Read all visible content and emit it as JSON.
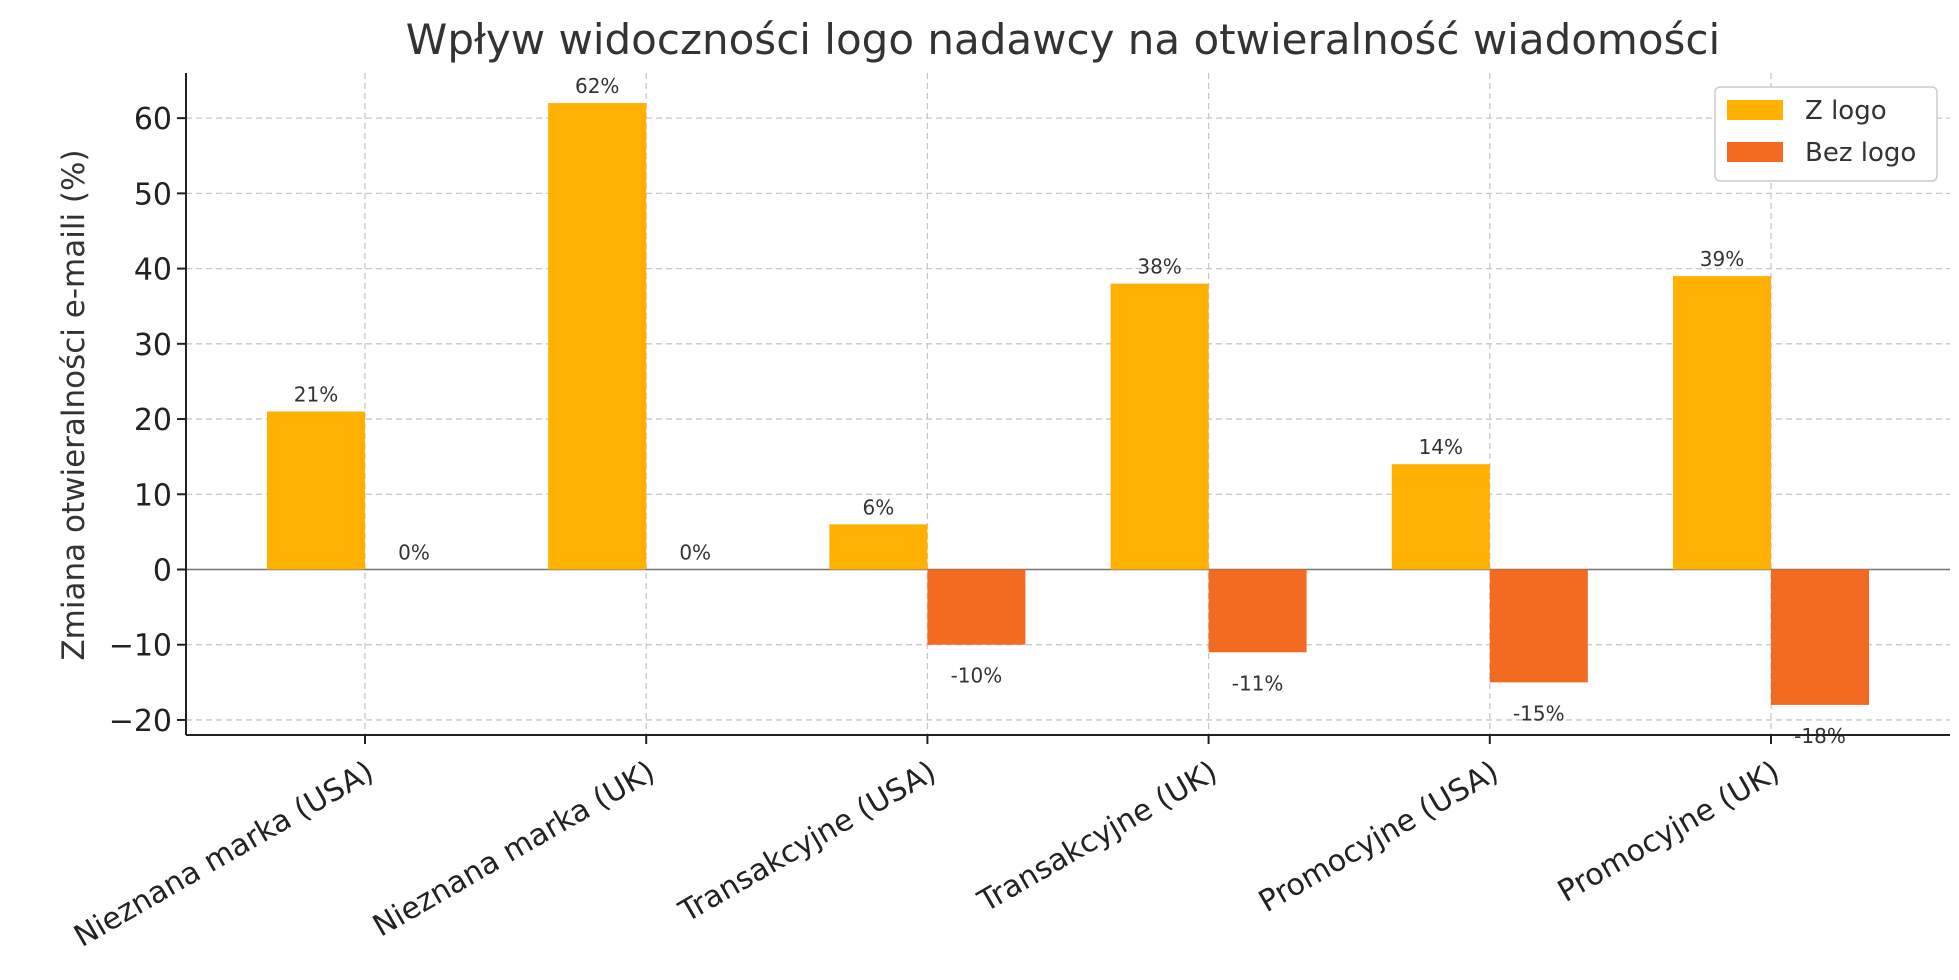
{
  "chart_data": {
    "type": "bar",
    "title": "Wpływ widoczności logo nadawcy na otwieralność wiadomości",
    "xlabel": "",
    "ylabel": "Zmiana otwieralności e-maili (%)",
    "categories": [
      "Nieznana marka (USA)",
      "Nieznana marka (UK)",
      "Transakcyjne (USA)",
      "Transakcyjne (UK)",
      "Promocyjne (USA)",
      "Promocyjne (UK)"
    ],
    "series": [
      {
        "name": "Z logo",
        "color": "#FFB000",
        "values": [
          21,
          62,
          6,
          38,
          14,
          39
        ],
        "labels": [
          "21%",
          "62%",
          "6%",
          "38%",
          "14%",
          "39%"
        ]
      },
      {
        "name": "Bez logo",
        "color": "#F26B21",
        "values": [
          0,
          0,
          -10,
          -11,
          -15,
          -18
        ],
        "labels": [
          "0%",
          "0%",
          "-10%",
          "-11%",
          "-15%",
          "-18%"
        ]
      }
    ],
    "ylim": [
      -22,
      66
    ],
    "yticks": [
      -20,
      -10,
      0,
      10,
      20,
      30,
      40,
      50,
      60
    ],
    "ytick_labels": [
      "−20",
      "−10",
      "0",
      "10",
      "20",
      "30",
      "40",
      "50",
      "60"
    ],
    "grid": true,
    "legend_position": "top-right"
  }
}
